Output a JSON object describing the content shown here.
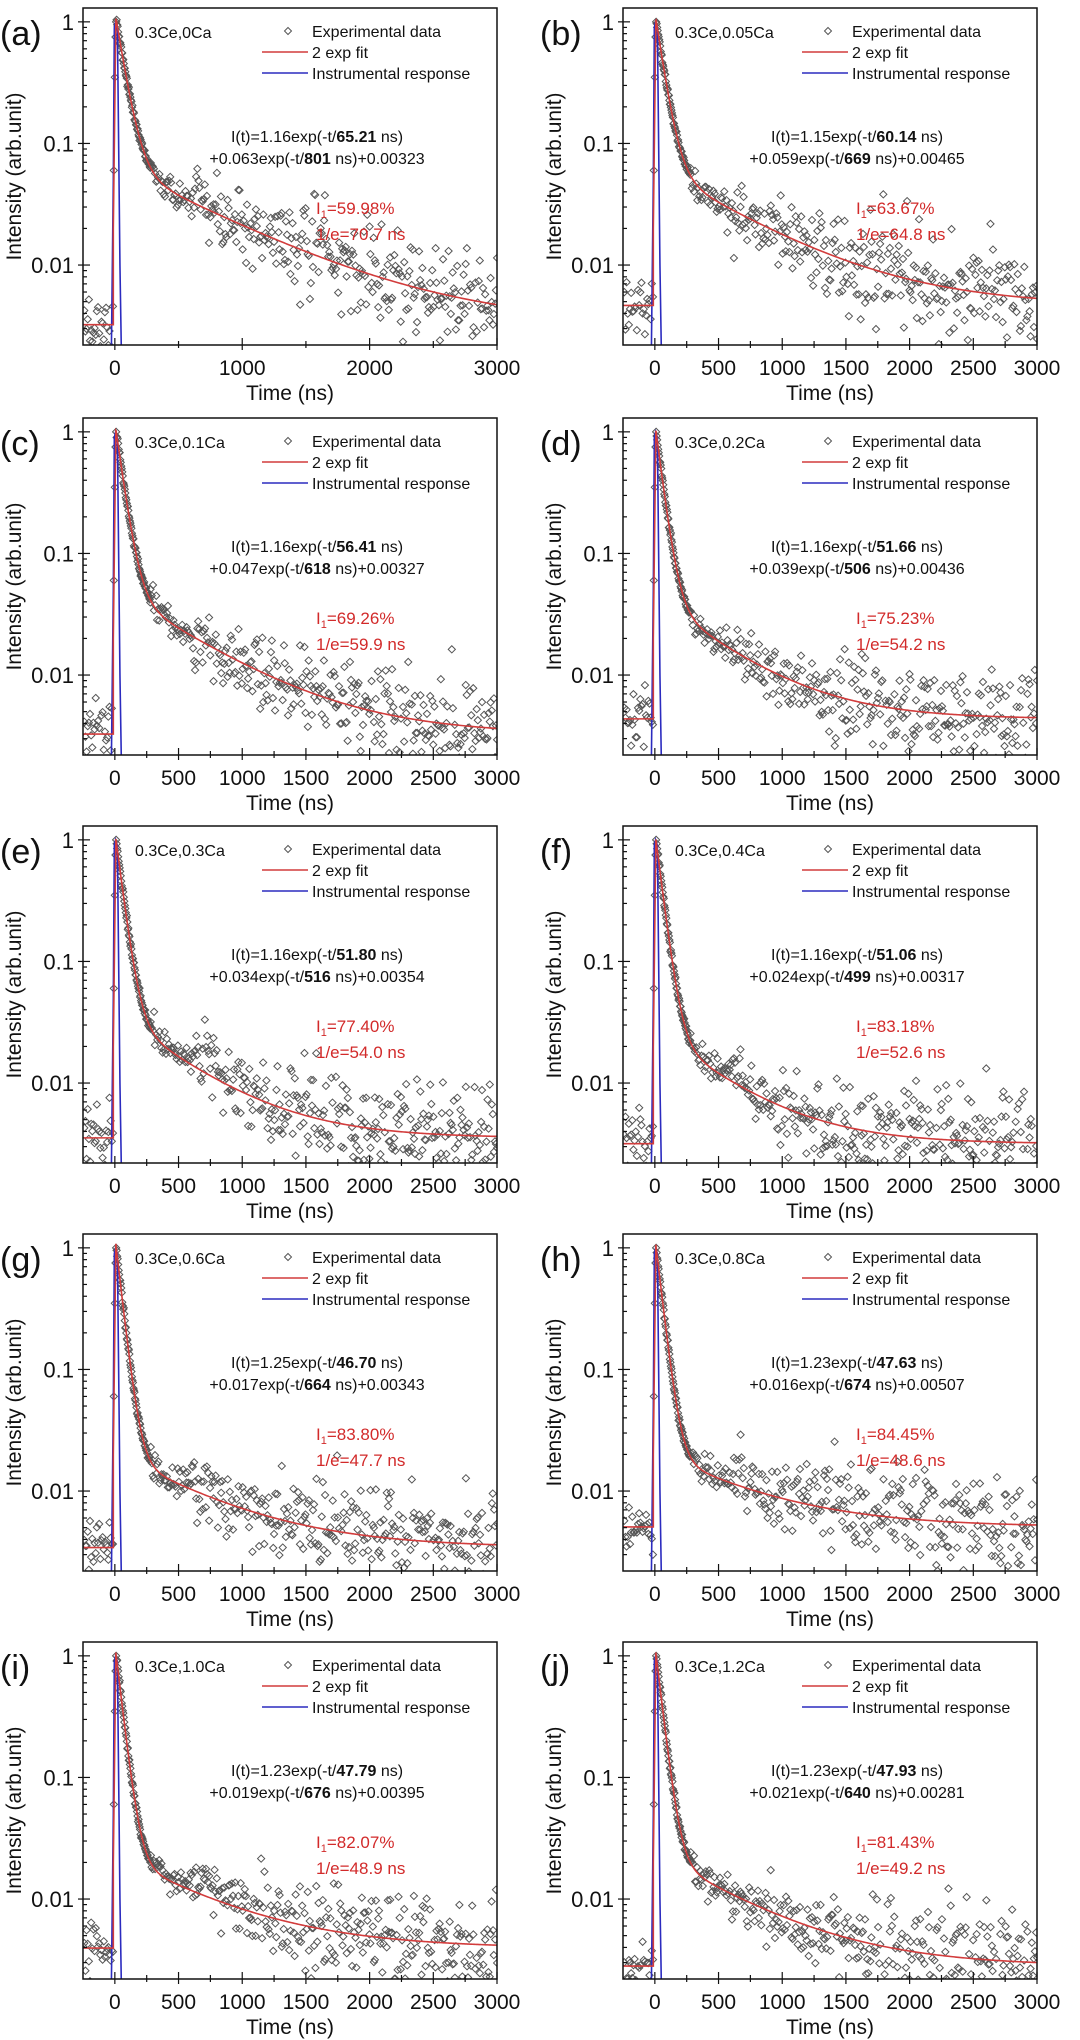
{
  "figure": {
    "legend": {
      "experimental": "Experimental data",
      "fit": "2 exp fit",
      "irf": "Instrumental response"
    },
    "colors": {
      "fit": "#d23c3c",
      "irf": "#2b2bbf",
      "data": "#555555",
      "annotation": "#d22a2a",
      "axis": "#111111"
    }
  },
  "chart_data": [
    {
      "panel": "(a)",
      "type": "scatter",
      "sample": "0.3Ce,0Ca",
      "xlabel": "Time (ns)",
      "ylabel": "Intensity (arb.unit)",
      "yscale": "log",
      "xlim": [
        -250,
        3000
      ],
      "ylim": [
        0.0022,
        1.3
      ],
      "xticks": [
        0,
        1000,
        2000,
        3000
      ],
      "yticks": [
        0.01,
        0.1,
        1
      ],
      "ytick_labels": [
        "0.01",
        "0.1",
        "1"
      ],
      "fit": {
        "A1": 1.16,
        "tau1": 65.21,
        "A2": 0.063,
        "tau2": 801,
        "C": 0.00323
      },
      "fit_text": {
        "l1_pre": "I(t)=1.16exp(-t/",
        "tau1": "65.21",
        "l1_post": " ns)",
        "l2_pre": "+0.063exp(-t/",
        "tau2": "801",
        "l2_post": " ns)+0.00323"
      },
      "I1": "59.98%",
      "one_over_e": "1/e=70.7 ns",
      "shoulder": 0
    },
    {
      "panel": "(b)",
      "type": "scatter",
      "sample": "0.3Ce,0.05Ca",
      "xlabel": "Time (ns)",
      "ylabel": "Intensity (arb.unit)",
      "yscale": "log",
      "xlim": [
        -250,
        3000
      ],
      "ylim": [
        0.0022,
        1.3
      ],
      "xticks": [
        0,
        500,
        1000,
        1500,
        2000,
        2500,
        3000
      ],
      "yticks": [
        0.01,
        0.1,
        1
      ],
      "ytick_labels": [
        "0.01",
        "0.1",
        "1"
      ],
      "fit": {
        "A1": 1.15,
        "tau1": 60.14,
        "A2": 0.059,
        "tau2": 669,
        "C": 0.00465
      },
      "fit_text": {
        "l1_pre": "I(t)=1.15exp(-t/",
        "tau1": "60.14",
        "l1_post": " ns)",
        "l2_pre": "+0.059exp(-t/",
        "tau2": "669",
        "l2_post": " ns)+0.00465"
      },
      "I1": "63.67%",
      "one_over_e": "1/e=64.8 ns",
      "shoulder": 0
    },
    {
      "panel": "(c)",
      "type": "scatter",
      "sample": "0.3Ce,0.1Ca",
      "xlabel": "Time (ns)",
      "ylabel": "Intensity (arb.unit)",
      "yscale": "log",
      "xlim": [
        -250,
        3000
      ],
      "ylim": [
        0.0022,
        1.3
      ],
      "xticks": [
        0,
        500,
        1000,
        1500,
        2000,
        2500,
        3000
      ],
      "yticks": [
        0.01,
        0.1,
        1
      ],
      "ytick_labels": [
        "0.01",
        "0.1",
        "1"
      ],
      "fit": {
        "A1": 1.16,
        "tau1": 56.41,
        "A2": 0.047,
        "tau2": 618,
        "C": 0.00327
      },
      "fit_text": {
        "l1_pre": "I(t)=1.16exp(-t/",
        "tau1": "56.41",
        "l1_post": " ns)",
        "l2_pre": "+0.047exp(-t/",
        "tau2": "618",
        "l2_post": " ns)+0.00327"
      },
      "I1": "69.26%",
      "one_over_e": "1/e=59.9 ns",
      "shoulder": 0
    },
    {
      "panel": "(d)",
      "type": "scatter",
      "sample": "0.3Ce,0.2Ca",
      "xlabel": "Time (ns)",
      "ylabel": "Intensity (arb.unit)",
      "yscale": "log",
      "xlim": [
        -250,
        3000
      ],
      "ylim": [
        0.0022,
        1.3
      ],
      "xticks": [
        0,
        500,
        1000,
        1500,
        2000,
        2500,
        3000
      ],
      "yticks": [
        0.01,
        0.1,
        1
      ],
      "ytick_labels": [
        "0.01",
        "0.1",
        "1"
      ],
      "fit": {
        "A1": 1.16,
        "tau1": 51.66,
        "A2": 0.039,
        "tau2": 506,
        "C": 0.00436
      },
      "fit_text": {
        "l1_pre": "I(t)=1.16exp(-t/",
        "tau1": "51.66",
        "l1_post": " ns)",
        "l2_pre": "+0.039exp(-t/",
        "tau2": "506",
        "l2_post": " ns)+0.00436"
      },
      "I1": "75.23%",
      "one_over_e": "1/e=54.2 ns",
      "shoulder": 0
    },
    {
      "panel": "(e)",
      "type": "scatter",
      "sample": "0.3Ce,0.3Ca",
      "xlabel": "Time (ns)",
      "ylabel": "Intensity (arb.unit)",
      "yscale": "log",
      "xlim": [
        -250,
        3000
      ],
      "ylim": [
        0.0022,
        1.3
      ],
      "xticks": [
        0,
        500,
        1000,
        1500,
        2000,
        2500,
        3000
      ],
      "yticks": [
        0.01,
        0.1,
        1
      ],
      "ytick_labels": [
        "0.01",
        "0.1",
        "1"
      ],
      "fit": {
        "A1": 1.16,
        "tau1": 51.8,
        "A2": 0.034,
        "tau2": 516,
        "C": 0.00354
      },
      "fit_text": {
        "l1_pre": "I(t)=1.16exp(-t/",
        "tau1": "51.80",
        "l1_post": " ns)",
        "l2_pre": "+0.034exp(-t/",
        "tau2": "516",
        "l2_post": " ns)+0.00354"
      },
      "I1": "77.40%",
      "one_over_e": "1/e=54.0 ns",
      "shoulder": 1
    },
    {
      "panel": "(f)",
      "type": "scatter",
      "sample": "0.3Ce,0.4Ca",
      "xlabel": "Time (ns)",
      "ylabel": "Intensity (arb.unit)",
      "yscale": "log",
      "xlim": [
        -250,
        3000
      ],
      "ylim": [
        0.0022,
        1.3
      ],
      "xticks": [
        0,
        500,
        1000,
        1500,
        2000,
        2500,
        3000
      ],
      "yticks": [
        0.01,
        0.1,
        1
      ],
      "ytick_labels": [
        "0.01",
        "0.1",
        "1"
      ],
      "fit": {
        "A1": 1.16,
        "tau1": 51.06,
        "A2": 0.024,
        "tau2": 499,
        "C": 0.00317
      },
      "fit_text": {
        "l1_pre": "I(t)=1.16exp(-t/",
        "tau1": "51.06",
        "l1_post": " ns)",
        "l2_pre": "+0.024exp(-t/",
        "tau2": "499",
        "l2_post": " ns)+0.00317"
      },
      "I1": "83.18%",
      "one_over_e": "1/e=52.6 ns",
      "shoulder": 1
    },
    {
      "panel": "(g)",
      "type": "scatter",
      "sample": "0.3Ce,0.6Ca",
      "xlabel": "Time (ns)",
      "ylabel": "Intensity (arb.unit)",
      "yscale": "log",
      "xlim": [
        -250,
        3000
      ],
      "ylim": [
        0.0022,
        1.3
      ],
      "xticks": [
        0,
        500,
        1000,
        1500,
        2000,
        2500,
        3000
      ],
      "yticks": [
        0.01,
        0.1,
        1
      ],
      "ytick_labels": [
        "0.01",
        "0.1",
        "1"
      ],
      "fit": {
        "A1": 1.25,
        "tau1": 46.7,
        "A2": 0.017,
        "tau2": 664,
        "C": 0.00343
      },
      "fit_text": {
        "l1_pre": "I(t)=1.25exp(-t/",
        "tau1": "46.70",
        "l1_post": " ns)",
        "l2_pre": "+0.017exp(-t/",
        "tau2": "664",
        "l2_post": " ns)+0.00343"
      },
      "I1": "83.80%",
      "one_over_e": "1/e=47.7 ns",
      "shoulder": 1
    },
    {
      "panel": "(h)",
      "type": "scatter",
      "sample": "0.3Ce,0.8Ca",
      "xlabel": "Time (ns)",
      "ylabel": "Intensity (arb.unit)",
      "yscale": "log",
      "xlim": [
        -250,
        3000
      ],
      "ylim": [
        0.0022,
        1.3
      ],
      "xticks": [
        0,
        500,
        1000,
        1500,
        2000,
        2500,
        3000
      ],
      "yticks": [
        0.01,
        0.1,
        1
      ],
      "ytick_labels": [
        "0.01",
        "0.1",
        "1"
      ],
      "fit": {
        "A1": 1.23,
        "tau1": 47.63,
        "A2": 0.016,
        "tau2": 674,
        "C": 0.00507
      },
      "fit_text": {
        "l1_pre": "I(t)=1.23exp(-t/",
        "tau1": "47.63",
        "l1_post": " ns)",
        "l2_pre": "+0.016exp(-t/",
        "tau2": "674",
        "l2_post": " ns)+0.00507"
      },
      "I1": "84.45%",
      "one_over_e": "1/e=48.6 ns",
      "shoulder": 1
    },
    {
      "panel": "(i)",
      "type": "scatter",
      "sample": "0.3Ce,1.0Ca",
      "xlabel": "Time (ns)",
      "ylabel": "Intensity (arb.unit)",
      "yscale": "log",
      "xlim": [
        -250,
        3000
      ],
      "ylim": [
        0.0022,
        1.3
      ],
      "xticks": [
        0,
        500,
        1000,
        1500,
        2000,
        2500,
        3000
      ],
      "yticks": [
        0.01,
        0.1,
        1
      ],
      "ytick_labels": [
        "0.01",
        "0.1",
        "1"
      ],
      "fit": {
        "A1": 1.23,
        "tau1": 47.79,
        "A2": 0.019,
        "tau2": 676,
        "C": 0.00395
      },
      "fit_text": {
        "l1_pre": "I(t)=1.23exp(-t/",
        "tau1": "47.79",
        "l1_post": " ns)",
        "l2_pre": "+0.019exp(-t/",
        "tau2": "676",
        "l2_post": " ns)+0.00395"
      },
      "I1": "82.07%",
      "one_over_e": "1/e=48.9 ns",
      "shoulder": 1
    },
    {
      "panel": "(j)",
      "type": "scatter",
      "sample": "0.3Ce,1.2Ca",
      "xlabel": "Time (ns)",
      "ylabel": "Intensity (arb.unit)",
      "yscale": "log",
      "xlim": [
        -250,
        3000
      ],
      "ylim": [
        0.0022,
        1.3
      ],
      "xticks": [
        0,
        500,
        1000,
        1500,
        2000,
        2500,
        3000
      ],
      "yticks": [
        0.01,
        0.1,
        1
      ],
      "ytick_labels": [
        "0.01",
        "0.1",
        "1"
      ],
      "fit": {
        "A1": 1.23,
        "tau1": 47.93,
        "A2": 0.021,
        "tau2": 640,
        "C": 0.00281
      },
      "fit_text": {
        "l1_pre": "I(t)=1.23exp(-t/",
        "tau1": "47.93",
        "l1_post": " ns)",
        "l2_pre": "+0.021exp(-t/",
        "tau2": "640",
        "l2_post": " ns)+0.00281"
      },
      "I1": "81.43%",
      "one_over_e": "1/e=49.2 ns",
      "shoulder": 0
    }
  ]
}
